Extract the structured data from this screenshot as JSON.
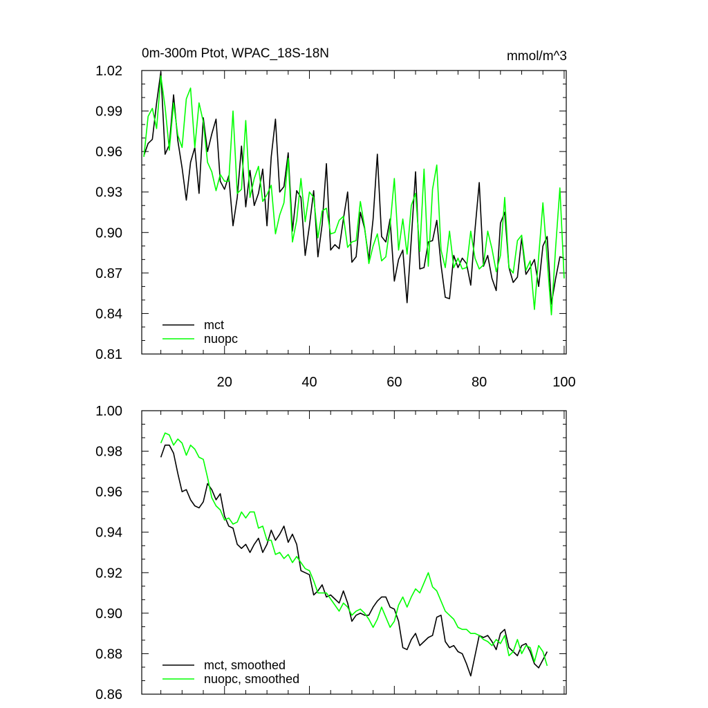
{
  "chart_data": [
    {
      "type": "line",
      "title": "0m-300m Ptot, WPAC_18S-18N",
      "units": "mmol/m^3",
      "xlabel": "",
      "ylabel": "",
      "xlim": [
        0.5,
        100.5
      ],
      "ylim": [
        0.81,
        1.02
      ],
      "xticks": [
        20,
        40,
        60,
        80,
        100
      ],
      "yticks": [
        "0.81",
        "0.84",
        "0.87",
        "0.90",
        "0.93",
        "0.96",
        "0.99",
        "1.02"
      ],
      "legend_position": "bottom-left",
      "x": [
        1,
        2,
        3,
        4,
        5,
        6,
        7,
        8,
        9,
        10,
        11,
        12,
        13,
        14,
        15,
        16,
        17,
        18,
        19,
        20,
        21,
        22,
        23,
        24,
        25,
        26,
        27,
        28,
        29,
        30,
        31,
        32,
        33,
        34,
        35,
        36,
        37,
        38,
        39,
        40,
        41,
        42,
        43,
        44,
        45,
        46,
        47,
        48,
        49,
        50,
        51,
        52,
        53,
        54,
        55,
        56,
        57,
        58,
        59,
        60,
        61,
        62,
        63,
        64,
        65,
        66,
        67,
        68,
        69,
        70,
        71,
        72,
        73,
        74,
        75,
        76,
        77,
        78,
        79,
        80,
        81,
        82,
        83,
        84,
        85,
        86,
        87,
        88,
        89,
        90,
        91,
        92,
        93,
        94,
        95,
        96,
        97,
        98,
        99,
        100
      ],
      "series": [
        {
          "name": "mct",
          "color": "#000000",
          "values": [
            0.957,
            0.966,
            0.969,
            0.996,
            1.019,
            0.958,
            0.965,
            1.002,
            0.968,
            0.948,
            0.924,
            0.952,
            0.963,
            0.929,
            0.985,
            0.96,
            0.973,
            0.984,
            0.938,
            0.932,
            0.942,
            0.905,
            0.926,
            0.964,
            0.919,
            0.946,
            0.92,
            0.929,
            0.947,
            0.905,
            0.956,
            0.984,
            0.93,
            0.934,
            0.959,
            0.901,
            0.931,
            0.926,
            0.883,
            0.905,
            0.931,
            0.882,
            0.906,
            0.951,
            0.887,
            0.891,
            0.888,
            0.91,
            0.93,
            0.878,
            0.882,
            0.915,
            0.903,
            0.88,
            0.91,
            0.958,
            0.897,
            0.893,
            0.91,
            0.864,
            0.88,
            0.887,
            0.848,
            0.895,
            0.945,
            0.873,
            0.874,
            0.893,
            0.894,
            0.909,
            0.876,
            0.852,
            0.851,
            0.883,
            0.874,
            0.881,
            0.877,
            0.861,
            0.902,
            0.937,
            0.875,
            0.883,
            0.866,
            0.857,
            0.907,
            0.915,
            0.874,
            0.863,
            0.867,
            0.896,
            0.869,
            0.874,
            0.88,
            0.86,
            0.89,
            0.897,
            0.847,
            0.866,
            0.882,
            0.881
          ]
        },
        {
          "name": "nuopc",
          "color": "#00ff00",
          "values": [
            0.956,
            0.986,
            0.992,
            0.977,
            1.016,
            0.993,
            0.961,
            0.996,
            0.972,
            0.963,
            0.999,
            1.007,
            0.963,
            0.996,
            0.982,
            0.952,
            0.945,
            0.931,
            0.943,
            0.938,
            0.938,
            0.99,
            0.929,
            0.932,
            0.983,
            0.926,
            0.94,
            0.949,
            0.923,
            0.928,
            0.935,
            0.899,
            0.913,
            0.922,
            0.955,
            0.893,
            0.909,
            0.94,
            0.908,
            0.93,
            0.926,
            0.896,
            0.916,
            0.918,
            0.899,
            0.9,
            0.909,
            0.912,
            0.889,
            0.893,
            0.894,
            0.923,
            0.904,
            0.877,
            0.89,
            0.899,
            0.879,
            0.882,
            0.905,
            0.94,
            0.887,
            0.91,
            0.884,
            0.92,
            0.929,
            0.886,
            0.947,
            0.875,
            0.932,
            0.95,
            0.887,
            0.874,
            0.901,
            0.874,
            0.881,
            0.873,
            0.874,
            0.901,
            0.881,
            0.873,
            0.876,
            0.901,
            0.888,
            0.871,
            0.883,
            0.926,
            0.874,
            0.87,
            0.894,
            0.898,
            0.872,
            0.879,
            0.843,
            0.882,
            0.922,
            0.88,
            0.839,
            0.889,
            0.933,
            0.866
          ]
        }
      ]
    },
    {
      "type": "line",
      "title": "",
      "xlabel": "",
      "ylabel": "",
      "xlim": [
        0.5,
        100.5
      ],
      "ylim": [
        0.86,
        1.0
      ],
      "yticks": [
        "0.86",
        "0.88",
        "0.90",
        "0.92",
        "0.94",
        "0.96",
        "0.98",
        "1.00"
      ],
      "legend_position": "bottom-left",
      "x": [
        5,
        6,
        7,
        8,
        9,
        10,
        11,
        12,
        13,
        14,
        15,
        16,
        17,
        18,
        19,
        20,
        21,
        22,
        23,
        24,
        25,
        26,
        27,
        28,
        29,
        30,
        31,
        32,
        33,
        34,
        35,
        36,
        37,
        38,
        39,
        40,
        41,
        42,
        43,
        44,
        45,
        46,
        47,
        48,
        49,
        50,
        51,
        52,
        53,
        54,
        55,
        56,
        57,
        58,
        59,
        60,
        61,
        62,
        63,
        64,
        65,
        66,
        67,
        68,
        69,
        70,
        71,
        72,
        73,
        74,
        75,
        76,
        77,
        78,
        79,
        80,
        81,
        82,
        83,
        84,
        85,
        86,
        87,
        88,
        89,
        90,
        91,
        92,
        93,
        94,
        95,
        96
      ],
      "series": [
        {
          "name": "mct, smoothed",
          "color": "#000000",
          "values": [
            0.977,
            0.983,
            0.983,
            0.979,
            0.969,
            0.96,
            0.961,
            0.956,
            0.953,
            0.952,
            0.955,
            0.964,
            0.961,
            0.956,
            0.959,
            0.948,
            0.943,
            0.942,
            0.934,
            0.932,
            0.934,
            0.93,
            0.934,
            0.937,
            0.93,
            0.934,
            0.941,
            0.936,
            0.939,
            0.943,
            0.935,
            0.939,
            0.934,
            0.921,
            0.92,
            0.919,
            0.909,
            0.911,
            0.914,
            0.908,
            0.909,
            0.907,
            0.905,
            0.911,
            0.905,
            0.896,
            0.899,
            0.9,
            0.899,
            0.899,
            0.903,
            0.906,
            0.908,
            0.908,
            0.903,
            0.902,
            0.896,
            0.883,
            0.882,
            0.887,
            0.89,
            0.884,
            0.886,
            0.888,
            0.889,
            0.898,
            0.899,
            0.886,
            0.883,
            0.884,
            0.881,
            0.88,
            0.875,
            0.869,
            0.879,
            0.889,
            0.888,
            0.889,
            0.886,
            0.882,
            0.89,
            0.892,
            0.883,
            0.881,
            0.879,
            0.884,
            0.885,
            0.881,
            0.875,
            0.873,
            0.877,
            0.881
          ]
        },
        {
          "name": "nuopc, smoothed",
          "color": "#00ff00",
          "values": [
            0.984,
            0.989,
            0.988,
            0.983,
            0.986,
            0.984,
            0.978,
            0.983,
            0.981,
            0.977,
            0.976,
            0.967,
            0.957,
            0.953,
            0.951,
            0.946,
            0.947,
            0.944,
            0.945,
            0.95,
            0.947,
            0.95,
            0.95,
            0.942,
            0.943,
            0.936,
            0.936,
            0.929,
            0.93,
            0.927,
            0.929,
            0.925,
            0.928,
            0.925,
            0.922,
            0.921,
            0.916,
            0.91,
            0.91,
            0.91,
            0.907,
            0.904,
            0.901,
            0.905,
            0.903,
            0.899,
            0.901,
            0.902,
            0.9,
            0.897,
            0.893,
            0.897,
            0.903,
            0.898,
            0.893,
            0.896,
            0.904,
            0.908,
            0.903,
            0.908,
            0.912,
            0.91,
            0.915,
            0.92,
            0.913,
            0.911,
            0.906,
            0.901,
            0.899,
            0.897,
            0.893,
            0.892,
            0.892,
            0.89,
            0.89,
            0.889,
            0.887,
            0.886,
            0.884,
            0.887,
            0.885,
            0.889,
            0.879,
            0.881,
            0.887,
            0.88,
            0.884,
            0.883,
            0.876,
            0.884,
            0.881,
            0.874
          ]
        }
      ]
    }
  ]
}
